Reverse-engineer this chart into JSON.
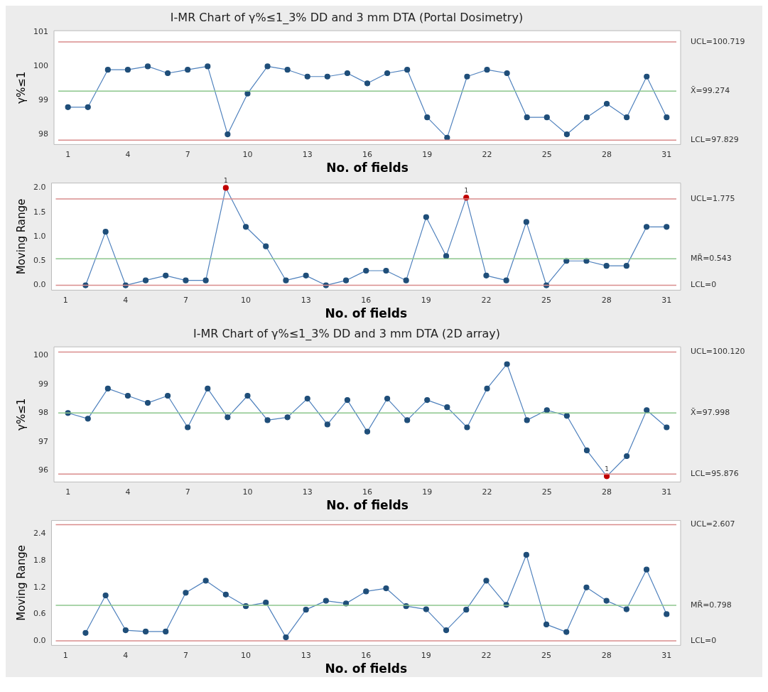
{
  "chart_data": [
    {
      "type": "line",
      "title": "I-MR Chart of γ%≤1_3% DD and 3 mm DTA (Portal Dosimetry)",
      "xlabel": "No. of fields",
      "ylabel": "γ%≤1",
      "x": [
        1,
        2,
        3,
        4,
        5,
        6,
        7,
        8,
        9,
        10,
        11,
        12,
        13,
        14,
        15,
        16,
        17,
        18,
        19,
        20,
        21,
        22,
        23,
        24,
        25,
        26,
        27,
        28,
        29,
        30,
        31
      ],
      "series": [
        {
          "color": "#4f81bd",
          "colors": [
            "#1f4e79",
            "#1f4e79",
            "#1f4e79",
            "#1f4e79",
            "#1f4e79",
            "#1f4e79",
            "#1f4e79",
            "#1f4e79",
            "#1f4e79",
            "#1f4e79",
            "#1f4e79",
            "#1f4e79",
            "#1f4e79",
            "#1f4e79",
            "#1f4e79",
            "#1f4e79",
            "#1f4e79",
            "#1f4e79",
            "#1f4e79",
            "#1f4e79",
            "#1f4e79",
            "#1f4e79",
            "#1f4e79",
            "#1f4e79",
            "#1f4e79",
            "#1f4e79",
            "#1f4e79",
            "#1f4e79",
            "#1f4e79",
            "#1f4e79",
            "#1f4e79"
          ],
          "values": [
            98.8,
            98.8,
            99.9,
            99.9,
            100,
            99.8,
            99.9,
            100,
            98.0,
            99.2,
            100,
            99.9,
            99.7,
            99.7,
            99.8,
            99.5,
            99.8,
            99.9,
            98.5,
            97.9,
            99.7,
            99.9,
            99.8,
            98.5,
            98.5,
            98.0,
            98.5,
            98.9,
            98.5,
            99.7,
            98.5
          ]
        }
      ],
      "xlim": [
        0.3,
        31.7
      ],
      "xticks": [
        1,
        4,
        7,
        10,
        13,
        16,
        19,
        22,
        25,
        28,
        31
      ],
      "ylim": [
        97.7,
        101.05
      ],
      "yticks": [
        98,
        99,
        100,
        101
      ],
      "ref_lines": [
        {
          "axis": "y",
          "value": 100.719,
          "label": "UCL=100.719",
          "color": "#d98c8c"
        },
        {
          "axis": "y",
          "value": 99.274,
          "label": "X̄=99.274",
          "color": "#8cc68c"
        },
        {
          "axis": "y",
          "value": 97.829,
          "label": "LCL=97.829",
          "color": "#d98c8c"
        }
      ],
      "grid": false,
      "legend": false,
      "marker": "circle",
      "line_style": "solid"
    },
    {
      "type": "line",
      "xlabel": "No. of fields",
      "ylabel": "Moving Range",
      "series": [
        {
          "color": "#4f81bd",
          "colors": [
            "#1f4e79",
            "#1f4e79",
            "#1f4e79",
            "#1f4e79",
            "#1f4e79",
            "#1f4e79",
            "#1f4e79",
            "#c00000",
            "#1f4e79",
            "#1f4e79",
            "#1f4e79",
            "#1f4e79",
            "#1f4e79",
            "#1f4e79",
            "#1f4e79",
            "#1f4e79",
            "#1f4e79",
            "#1f4e79",
            "#1f4e79",
            "#c00000",
            "#1f4e79",
            "#1f4e79",
            "#1f4e79",
            "#1f4e79",
            "#1f4e79",
            "#1f4e79",
            "#1f4e79",
            "#1f4e79",
            "#1f4e79",
            "#1f4e79"
          ],
          "x": [
            2,
            3,
            4,
            5,
            6,
            7,
            8,
            9,
            10,
            11,
            12,
            13,
            14,
            15,
            16,
            17,
            18,
            19,
            20,
            21,
            22,
            23,
            24,
            25,
            26,
            27,
            28,
            29,
            30,
            31
          ],
          "values": [
            0,
            1.1,
            0,
            0.1,
            0.2,
            0.1,
            0.1,
            2.0,
            1.2,
            0.8,
            0.1,
            0.2,
            0,
            0.1,
            0.3,
            0.3,
            0.1,
            1.4,
            0.6,
            1.8,
            0.2,
            0.1,
            1.3,
            0,
            0.5,
            0.5,
            0.4,
            0.4,
            1.2,
            1.2
          ]
        }
      ],
      "xlim": [
        0.3,
        31.7
      ],
      "xticks": [
        1,
        4,
        7,
        10,
        13,
        16,
        19,
        22,
        25,
        28,
        31
      ],
      "ylim": [
        -0.1,
        2.1
      ],
      "yticks": [
        {
          "value": 0,
          "label": "0.0"
        },
        {
          "value": 0.5,
          "label": "0.5"
        },
        {
          "value": 1,
          "label": "1.0"
        },
        {
          "value": 1.5,
          "label": "1.5"
        },
        {
          "value": 2,
          "label": "2.0"
        }
      ],
      "ref_lines": [
        {
          "axis": "y",
          "value": 1.775,
          "label": "UCL=1.775",
          "color": "#d98c8c"
        },
        {
          "axis": "y",
          "value": 0.543,
          "label": "MR̄=0.543",
          "color": "#8cc68c"
        },
        {
          "axis": "y",
          "value": 0,
          "label": "LCL=0",
          "color": "#d98c8c"
        }
      ],
      "annotations": [
        {
          "text": "1",
          "x": 9,
          "y": 2.0
        },
        {
          "text": "1",
          "x": 21,
          "y": 1.8
        }
      ],
      "grid": false,
      "legend": false,
      "marker": "circle",
      "line_style": "solid"
    },
    {
      "type": "line",
      "title": "I-MR Chart of γ%≤1_3% DD and 3 mm DTA (2D array)",
      "xlabel": "No. of fields",
      "ylabel": "γ%≤1",
      "x": [
        1,
        2,
        3,
        4,
        5,
        6,
        7,
        8,
        9,
        10,
        11,
        12,
        13,
        14,
        15,
        16,
        17,
        18,
        19,
        20,
        21,
        22,
        23,
        24,
        25,
        26,
        27,
        28,
        29,
        30,
        31
      ],
      "series": [
        {
          "color": "#4f81bd",
          "colors": [
            "#1f4e79",
            "#1f4e79",
            "#1f4e79",
            "#1f4e79",
            "#1f4e79",
            "#1f4e79",
            "#1f4e79",
            "#1f4e79",
            "#1f4e79",
            "#1f4e79",
            "#1f4e79",
            "#1f4e79",
            "#1f4e79",
            "#1f4e79",
            "#1f4e79",
            "#1f4e79",
            "#1f4e79",
            "#1f4e79",
            "#1f4e79",
            "#1f4e79",
            "#1f4e79",
            "#1f4e79",
            "#1f4e79",
            "#1f4e79",
            "#1f4e79",
            "#1f4e79",
            "#1f4e79",
            "#c00000",
            "#1f4e79",
            "#1f4e79",
            "#1f4e79"
          ],
          "values": [
            98.0,
            97.8,
            98.85,
            98.6,
            98.35,
            98.6,
            97.5,
            98.85,
            97.85,
            98.6,
            97.75,
            97.85,
            98.5,
            97.6,
            98.45,
            97.35,
            98.5,
            97.75,
            98.45,
            98.2,
            97.5,
            98.85,
            99.7,
            97.75,
            98.1,
            97.9,
            96.7,
            95.8,
            96.5,
            98.1,
            97.5
          ]
        }
      ],
      "xlim": [
        0.3,
        31.7
      ],
      "xticks": [
        1,
        4,
        7,
        10,
        13,
        16,
        19,
        22,
        25,
        28,
        31
      ],
      "ylim": [
        95.6,
        100.3
      ],
      "yticks": [
        96,
        97,
        98,
        99,
        100
      ],
      "ref_lines": [
        {
          "axis": "y",
          "value": 100.12,
          "label": "UCL=100.120",
          "color": "#d98c8c"
        },
        {
          "axis": "y",
          "value": 97.998,
          "label": "X̄=97.998",
          "color": "#8cc68c"
        },
        {
          "axis": "y",
          "value": 95.876,
          "label": "LCL=95.876",
          "color": "#d98c8c"
        }
      ],
      "annotations": [
        {
          "text": "1",
          "x": 28,
          "y": 95.8
        }
      ],
      "grid": false,
      "legend": false,
      "marker": "circle",
      "line_style": "solid"
    },
    {
      "type": "line",
      "xlabel": "No. of fields",
      "ylabel": "Moving Range",
      "series": [
        {
          "color": "#4f81bd",
          "colors": [
            "#1f4e79",
            "#1f4e79",
            "#1f4e79",
            "#1f4e79",
            "#1f4e79",
            "#1f4e79",
            "#1f4e79",
            "#1f4e79",
            "#1f4e79",
            "#1f4e79",
            "#1f4e79",
            "#1f4e79",
            "#1f4e79",
            "#1f4e79",
            "#1f4e79",
            "#1f4e79",
            "#1f4e79",
            "#1f4e79",
            "#1f4e79",
            "#1f4e79",
            "#1f4e79",
            "#1f4e79",
            "#1f4e79",
            "#1f4e79",
            "#1f4e79",
            "#1f4e79",
            "#1f4e79",
            "#1f4e79",
            "#1f4e79",
            "#1f4e79"
          ],
          "x": [
            2,
            3,
            4,
            5,
            6,
            7,
            8,
            9,
            10,
            11,
            12,
            13,
            14,
            15,
            16,
            17,
            18,
            19,
            20,
            21,
            22,
            23,
            24,
            25,
            26,
            27,
            28,
            29,
            30,
            31
          ],
          "values": [
            0.18,
            1.02,
            0.24,
            0.21,
            0.21,
            1.08,
            1.35,
            1.04,
            0.78,
            0.86,
            0.08,
            0.7,
            0.9,
            0.84,
            1.11,
            1.18,
            0.78,
            0.71,
            0.24,
            0.7,
            1.35,
            0.81,
            1.93,
            0.37,
            0.2,
            1.2,
            0.9,
            0.71,
            1.6,
            0.6
          ]
        }
      ],
      "xlim": [
        0.3,
        31.7
      ],
      "xticks": [
        1,
        4,
        7,
        10,
        13,
        16,
        19,
        22,
        25,
        28,
        31
      ],
      "ylim": [
        -0.1,
        2.7
      ],
      "yticks": [
        {
          "value": 0,
          "label": "0.0"
        },
        {
          "value": 0.6,
          "label": "0.6"
        },
        {
          "value": 1.2,
          "label": "1.2"
        },
        {
          "value": 1.8,
          "label": "1.8"
        },
        {
          "value": 2.4,
          "label": "2.4"
        }
      ],
      "ref_lines": [
        {
          "axis": "y",
          "value": 2.607,
          "label": "UCL=2.607",
          "color": "#d98c8c"
        },
        {
          "axis": "y",
          "value": 0.798,
          "label": "MR̄=0.798",
          "color": "#8cc68c"
        },
        {
          "axis": "y",
          "value": 0,
          "label": "LCL=0",
          "color": "#d98c8c"
        }
      ],
      "grid": false,
      "legend": false,
      "marker": "circle",
      "line_style": "solid"
    }
  ]
}
